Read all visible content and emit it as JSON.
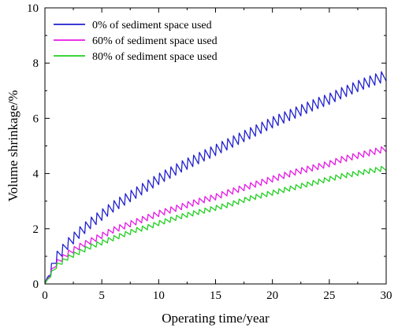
{
  "chart_data": {
    "type": "line",
    "xlabel": "Operating time/year",
    "ylabel": "Volume shrinkage/%",
    "xlim": [
      0,
      30
    ],
    "ylim": [
      0,
      10
    ],
    "xticks": [
      "0",
      "5",
      "10",
      "15",
      "20",
      "25",
      "30"
    ],
    "yticks": [
      "0",
      "2",
      "4",
      "6",
      "8",
      "10"
    ],
    "grid": false,
    "legend_position": "top-left",
    "series": [
      {
        "name": "0% of sediment space used",
        "color": "#1f1fcf",
        "x": [
          0,
          1,
          2,
          3,
          4,
          5,
          6,
          7,
          8,
          9,
          10,
          12,
          14,
          15,
          16,
          18,
          20,
          22,
          24,
          25,
          26,
          28,
          30
        ],
        "y": [
          0,
          0.95,
          1.45,
          1.85,
          2.2,
          2.5,
          2.8,
          3.05,
          3.3,
          3.55,
          3.8,
          4.25,
          4.65,
          4.85,
          5.05,
          5.45,
          5.85,
          6.2,
          6.55,
          6.7,
          6.9,
          7.25,
          7.55
        ],
        "oscillation_amplitude": 0.4
      },
      {
        "name": "60% of sediment space used",
        "color": "#e617e6",
        "x": [
          0,
          1,
          2,
          3,
          4,
          5,
          6,
          7,
          8,
          9,
          10,
          12,
          14,
          15,
          16,
          18,
          20,
          22,
          24,
          25,
          26,
          28,
          30
        ],
        "y": [
          0,
          0.75,
          1.1,
          1.35,
          1.55,
          1.75,
          1.95,
          2.1,
          2.25,
          2.4,
          2.55,
          2.8,
          3.05,
          3.15,
          3.3,
          3.55,
          3.8,
          4.05,
          4.25,
          4.35,
          4.5,
          4.7,
          4.9
        ],
        "oscillation_amplitude": 0.22
      },
      {
        "name": "80% of sediment space used",
        "color": "#1fcf1f",
        "x": [
          0,
          1,
          2,
          3,
          4,
          5,
          6,
          7,
          8,
          9,
          10,
          12,
          14,
          15,
          16,
          18,
          20,
          22,
          24,
          25,
          26,
          28,
          30
        ],
        "y": [
          0,
          0.65,
          0.95,
          1.15,
          1.35,
          1.5,
          1.65,
          1.8,
          1.95,
          2.05,
          2.2,
          2.45,
          2.65,
          2.75,
          2.85,
          3.1,
          3.3,
          3.5,
          3.7,
          3.8,
          3.9,
          4.05,
          4.2
        ],
        "oscillation_amplitude": 0.18
      }
    ]
  }
}
